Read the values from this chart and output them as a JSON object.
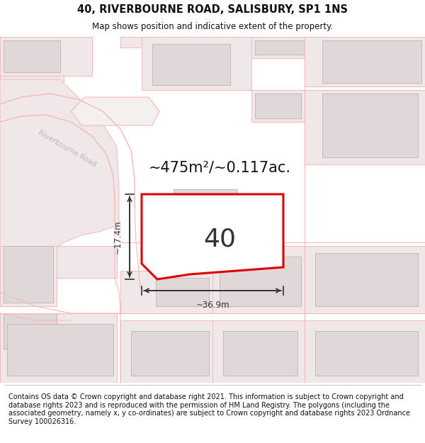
{
  "title_line1": "40, RIVERBOURNE ROAD, SALISBURY, SP1 1NS",
  "title_line2": "Map shows position and indicative extent of the property.",
  "area_text": "~475m²/~0.117ac.",
  "plot_number": "40",
  "dim_width": "~36.9m",
  "dim_height": "~17.4m",
  "footer_text": "Contains OS data © Crown copyright and database right 2021. This information is subject to Crown copyright and database rights 2023 and is reproduced with the permission of HM Land Registry. The polygons (including the associated geometry, namely x, y co-ordinates) are subject to Crown copyright and database rights 2023 Ordnance Survey 100026316.",
  "bg_color": "#ffffff",
  "map_bg": "#ffffff",
  "road_color": "#f4b8b8",
  "parcel_color": "#f0e8e8",
  "plot_fill": "#ffffff",
  "plot_edge": "#dd0000",
  "building_fill": "#e0d8d8",
  "building_edge": "#c8b8b8",
  "text_color": "#111111",
  "footer_color": "#111111",
  "dim_color": "#333333",
  "road_label_color": "#aaaaaa",
  "title_fontsize": 10.5,
  "subtitle_fontsize": 8.5,
  "area_fontsize": 15,
  "plot_num_fontsize": 26,
  "dim_fontsize": 8.5,
  "footer_fontsize": 7.0
}
